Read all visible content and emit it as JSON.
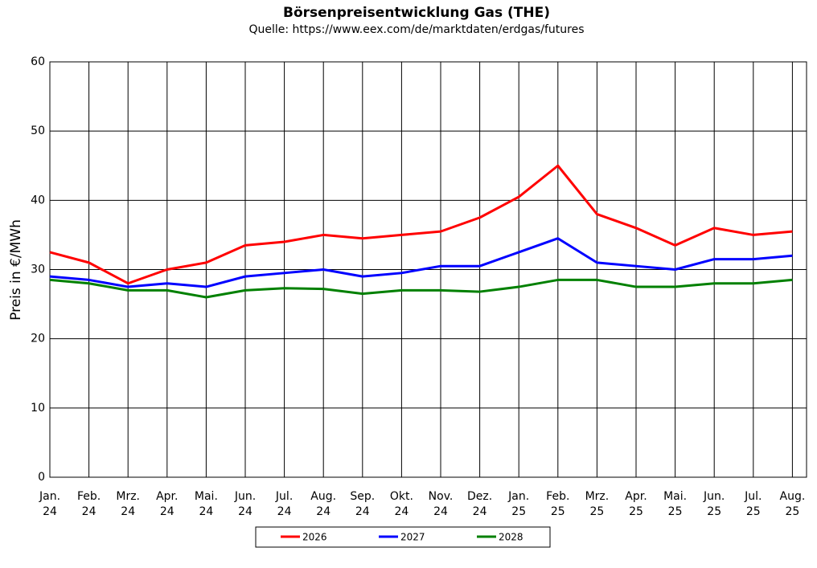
{
  "chart_data": {
    "type": "line",
    "title": "Börsenpreisentwicklung Gas (THE)",
    "subtitle": "Quelle: https://www.eex.com/de/marktdaten/erdgas/futures",
    "y_label": "Preis in €/MWh",
    "categories": [
      "Jan. 24",
      "Feb. 24",
      "Mrz. 24",
      "Apr. 24",
      "Mai. 24",
      "Jun. 24",
      "Jul. 24",
      "Aug. 24",
      "Sep. 24",
      "Okt. 24",
      "Nov. 24",
      "Dez. 24",
      "Jan. 25",
      "Feb. 25",
      "Mrz. 25",
      "Apr. 25",
      "Mai. 25",
      "Jun. 25",
      "Jul. 25",
      "Aug. 25"
    ],
    "series": [
      {
        "name": "2026",
        "color": "#ff0000",
        "values": [
          32.5,
          31,
          28,
          30,
          31,
          33.5,
          34,
          35,
          34.5,
          35,
          35.5,
          37.5,
          40.5,
          45,
          38,
          36,
          33.5,
          36,
          35,
          35.5
        ]
      },
      {
        "name": "2027",
        "color": "#0000ff",
        "values": [
          29,
          28.5,
          27.5,
          28,
          27.5,
          29,
          29.5,
          30,
          29,
          29.5,
          30.5,
          30.5,
          32.5,
          34.5,
          31,
          30.5,
          30,
          31.5,
          31.5,
          32
        ]
      },
      {
        "name": "2028",
        "color": "#008000",
        "values": [
          28.5,
          28,
          27,
          27,
          26,
          27,
          27.3,
          27.2,
          26.5,
          27,
          27,
          26.8,
          27.5,
          28.5,
          28.5,
          27.5,
          27.5,
          28,
          28,
          28.5
        ]
      }
    ],
    "ylim": [
      0,
      60
    ],
    "yticks": [
      0,
      10,
      20,
      30,
      40,
      50,
      60
    ],
    "grid": true
  }
}
